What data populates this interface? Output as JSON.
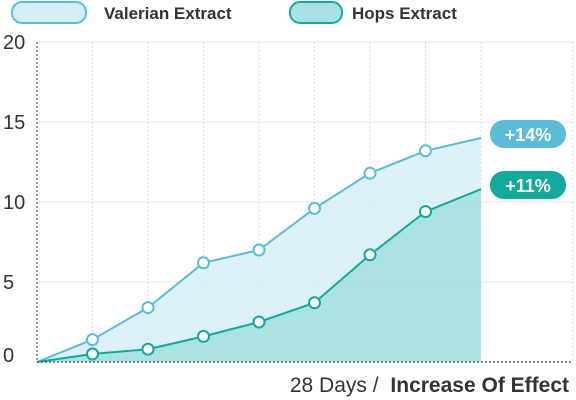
{
  "chart_data": {
    "type": "area",
    "x": [
      0,
      1,
      2,
      3,
      4,
      5,
      6,
      7,
      8
    ],
    "series": [
      {
        "name": "Valerian Extract",
        "values": [
          0,
          1.4,
          3.4,
          6.2,
          7.0,
          9.6,
          11.8,
          13.2,
          14.0
        ],
        "color": "#5bbcd8",
        "fill": "#d6eef7",
        "badge": "+14%"
      },
      {
        "name": "Hops Extract",
        "values": [
          0,
          0.5,
          0.8,
          1.6,
          2.5,
          3.7,
          6.7,
          9.4,
          10.8
        ],
        "color": "#14a99a",
        "fill": "#a8e0e3",
        "badge": "+11%"
      }
    ],
    "xlabel_prefix": "28 Days /",
    "xlabel_bold": "Increase Of Effect",
    "ylim": [
      0,
      20
    ],
    "yticks": [
      "0",
      "5",
      "10",
      "15",
      "20"
    ],
    "grid": true,
    "legend_position": "top-left"
  }
}
